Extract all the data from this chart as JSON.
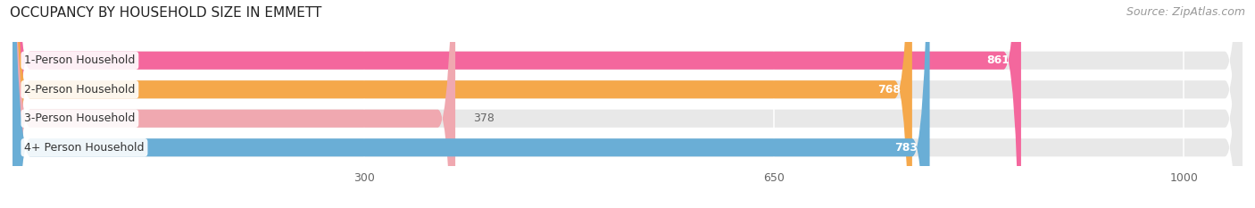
{
  "title": "OCCUPANCY BY HOUSEHOLD SIZE IN EMMETT",
  "source": "Source: ZipAtlas.com",
  "categories": [
    "1-Person Household",
    "2-Person Household",
    "3-Person Household",
    "4+ Person Household"
  ],
  "values": [
    861,
    768,
    378,
    783
  ],
  "bar_colors": [
    "#f4679d",
    "#f5a84b",
    "#f0a8b0",
    "#6aaed6"
  ],
  "bar_bg_color": "#e8e8e8",
  "xlim_data": [
    0,
    1050
  ],
  "xticks": [
    300,
    650,
    1000
  ],
  "value_label_color": [
    "white",
    "white",
    "#888888",
    "white"
  ],
  "background_color": "#ffffff",
  "title_fontsize": 11,
  "bar_label_fontsize": 9,
  "value_fontsize": 9,
  "source_fontsize": 9,
  "bar_height": 0.62,
  "n_bars": 4
}
